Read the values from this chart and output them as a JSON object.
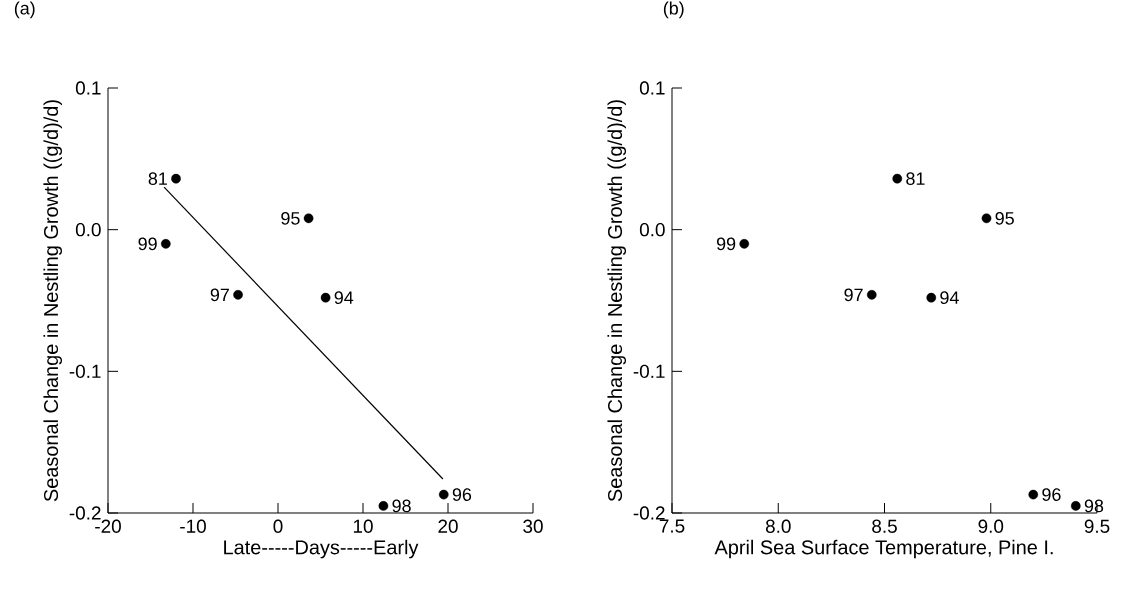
{
  "chart_data": [
    {
      "type": "scatter",
      "title": "(a)",
      "xlabel": "Late-----Days-----Early",
      "ylabel": "Seasonal Change in Nestling Growth ((g/d)/d)",
      "xlim": [
        -20,
        30
      ],
      "xticks": [
        -20,
        -10,
        0,
        10,
        20,
        30
      ],
      "ylim": [
        -0.2,
        0.1
      ],
      "yticks": [
        0.1,
        {
          "value": 0,
          "label": "0.0"
        },
        -0.1,
        -0.2
      ],
      "series": [
        {
          "color": "#000000",
          "x": [
            -12.0,
            3.6,
            -13.2,
            -4.7,
            5.6,
            19.5,
            12.4
          ],
          "values": [
            0.036,
            0.008,
            -0.01,
            -0.046,
            -0.048,
            -0.187,
            -0.195
          ]
        },
        {
          "type": "line",
          "color": "#000000",
          "x": [
            -13.4,
            19.4
          ],
          "values": [
            0.03,
            -0.176
          ]
        }
      ],
      "annotations": [
        {
          "text": "81",
          "x": -12.0,
          "y": 0.036
        },
        {
          "text": "95",
          "x": 3.6,
          "y": 0.008
        },
        {
          "text": "99",
          "x": -13.2,
          "y": -0.01
        },
        {
          "text": "97",
          "x": -4.7,
          "y": -0.046
        },
        {
          "text": "94",
          "x": 5.6,
          "y": -0.048
        },
        {
          "text": "96",
          "x": 19.5,
          "y": -0.187
        },
        {
          "text": "98",
          "x": 12.4,
          "y": -0.195
        }
      ]
    },
    {
      "type": "scatter",
      "title": "(b)",
      "xlabel": "April Sea Surface Temperature, Pine I.",
      "ylabel": "Seasonal Change in Nestling Growth ((g/d)/d)",
      "xlim": [
        7.5,
        9.5
      ],
      "xticks": [
        7.5,
        {
          "value": 8,
          "label": "8.0"
        },
        8.5,
        {
          "value": 9,
          "label": "9.0"
        },
        9.5
      ],
      "ylim": [
        -0.2,
        0.1
      ],
      "yticks": [
        0.1,
        {
          "value": 0,
          "label": "0.0"
        },
        -0.1,
        -0.2
      ],
      "series": [
        {
          "color": "#000000",
          "x": [
            8.56,
            8.98,
            7.84,
            8.44,
            8.72,
            9.2,
            9.4
          ],
          "values": [
            0.036,
            0.008,
            -0.01,
            -0.046,
            -0.048,
            -0.187,
            -0.195
          ]
        }
      ],
      "annotations": [
        {
          "text": "81",
          "x": 8.56,
          "y": 0.036
        },
        {
          "text": "95",
          "x": 8.98,
          "y": 0.008
        },
        {
          "text": "99",
          "x": 7.84,
          "y": -0.01
        },
        {
          "text": "97",
          "x": 8.44,
          "y": -0.046
        },
        {
          "text": "94",
          "x": 8.72,
          "y": -0.048
        },
        {
          "text": "96",
          "x": 9.2,
          "y": -0.187
        },
        {
          "text": "98",
          "x": 9.4,
          "y": -0.195
        }
      ]
    }
  ]
}
